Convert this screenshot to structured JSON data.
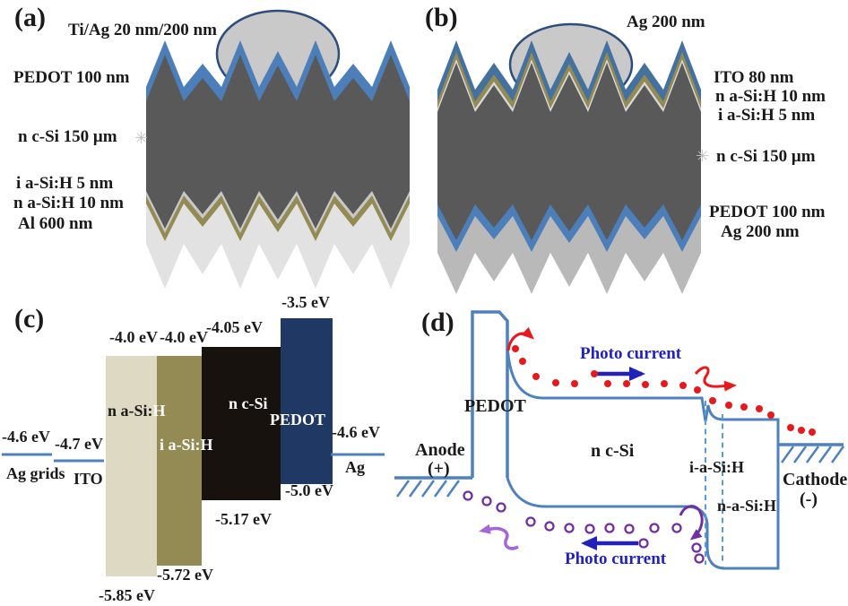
{
  "panel_a": {
    "tag": "(a)",
    "top_electrode_label": "Ti/Ag 20 nm/200 nm",
    "layer_labels": {
      "pedot": "PEDOT 100 nm",
      "ncsi": "n c-Si  150 μm",
      "iasih": "i a-Si:H  5 nm",
      "nasih": "n a-Si:H  10 nm",
      "al": "Al 600 nm"
    }
  },
  "panel_b": {
    "tag": "(b)",
    "top_electrode_label": "Ag 200 nm",
    "layer_labels": {
      "ito": "ITO  80 nm",
      "nasih": "n a-Si:H  10 nm",
      "iasih": "i a-Si:H  5 nm",
      "ncsi": "n c-Si  150 μm",
      "pedot": "PEDOT 100 nm",
      "ag": "Ag 200 nm"
    }
  },
  "panel_c": {
    "tag": "(c)",
    "electrodes": {
      "ag_grids": {
        "level": "-4.6 eV",
        "name": "Ag grids"
      },
      "ito": {
        "level": "-4.7 eV",
        "name": "ITO"
      },
      "ag": {
        "level": "-4.6 eV",
        "name": "Ag"
      }
    },
    "bars": [
      {
        "name_main": "n a-Si:",
        "name_tail": "H",
        "top": "-4.0 eV",
        "bottom": "-5.85 eV",
        "color": "#ddd9c3"
      },
      {
        "name": "i a-Si:H",
        "top": "-4.0 eV",
        "bottom": "-5.72 eV",
        "color": "#948a54"
      },
      {
        "name": "n c-Si",
        "top": "-4.05 eV",
        "bottom": "-5.17 eV",
        "color": "#17120e"
      },
      {
        "name": "PEDOT",
        "top": "-3.5 eV",
        "bottom": "-5.0 eV",
        "color": "#1f3864"
      }
    ]
  },
  "panel_d": {
    "tag": "(d)",
    "pedot": "PEDOT",
    "anode": "Anode",
    "anode_sign": "(+)",
    "ncsi": "n c-Si",
    "iasih": "i-a-Si:H",
    "nasih": "n-a-Si:H",
    "cathode": "Cathode",
    "cathode_sign": "(-)",
    "photo_current_top": "Photo current",
    "photo_current_bottom": "Photo current"
  },
  "icons": {
    "break_mark": "✳"
  },
  "colors": {
    "device_body_gray": "#595959",
    "pedot_blue": "#4c7fba",
    "ito_blue": "#45719e",
    "olive": "#948a54",
    "i_layer_gray": "#c8c8c8",
    "i_layer_gray_b": "#d8d8d8",
    "aluminum_gray": "#e2e2e2",
    "silver_gray": "#b9b9b9",
    "dome_gray": "#c9c9c9",
    "dome_outline_navy": "#2c4d7e",
    "band_line_blue": "#4f81bd",
    "photo_current_blue": "#2222c4",
    "electron_red": "#e8191c",
    "hole_purple": "#7030a0",
    "hole_arrow_light_purple": "#a566d8"
  }
}
